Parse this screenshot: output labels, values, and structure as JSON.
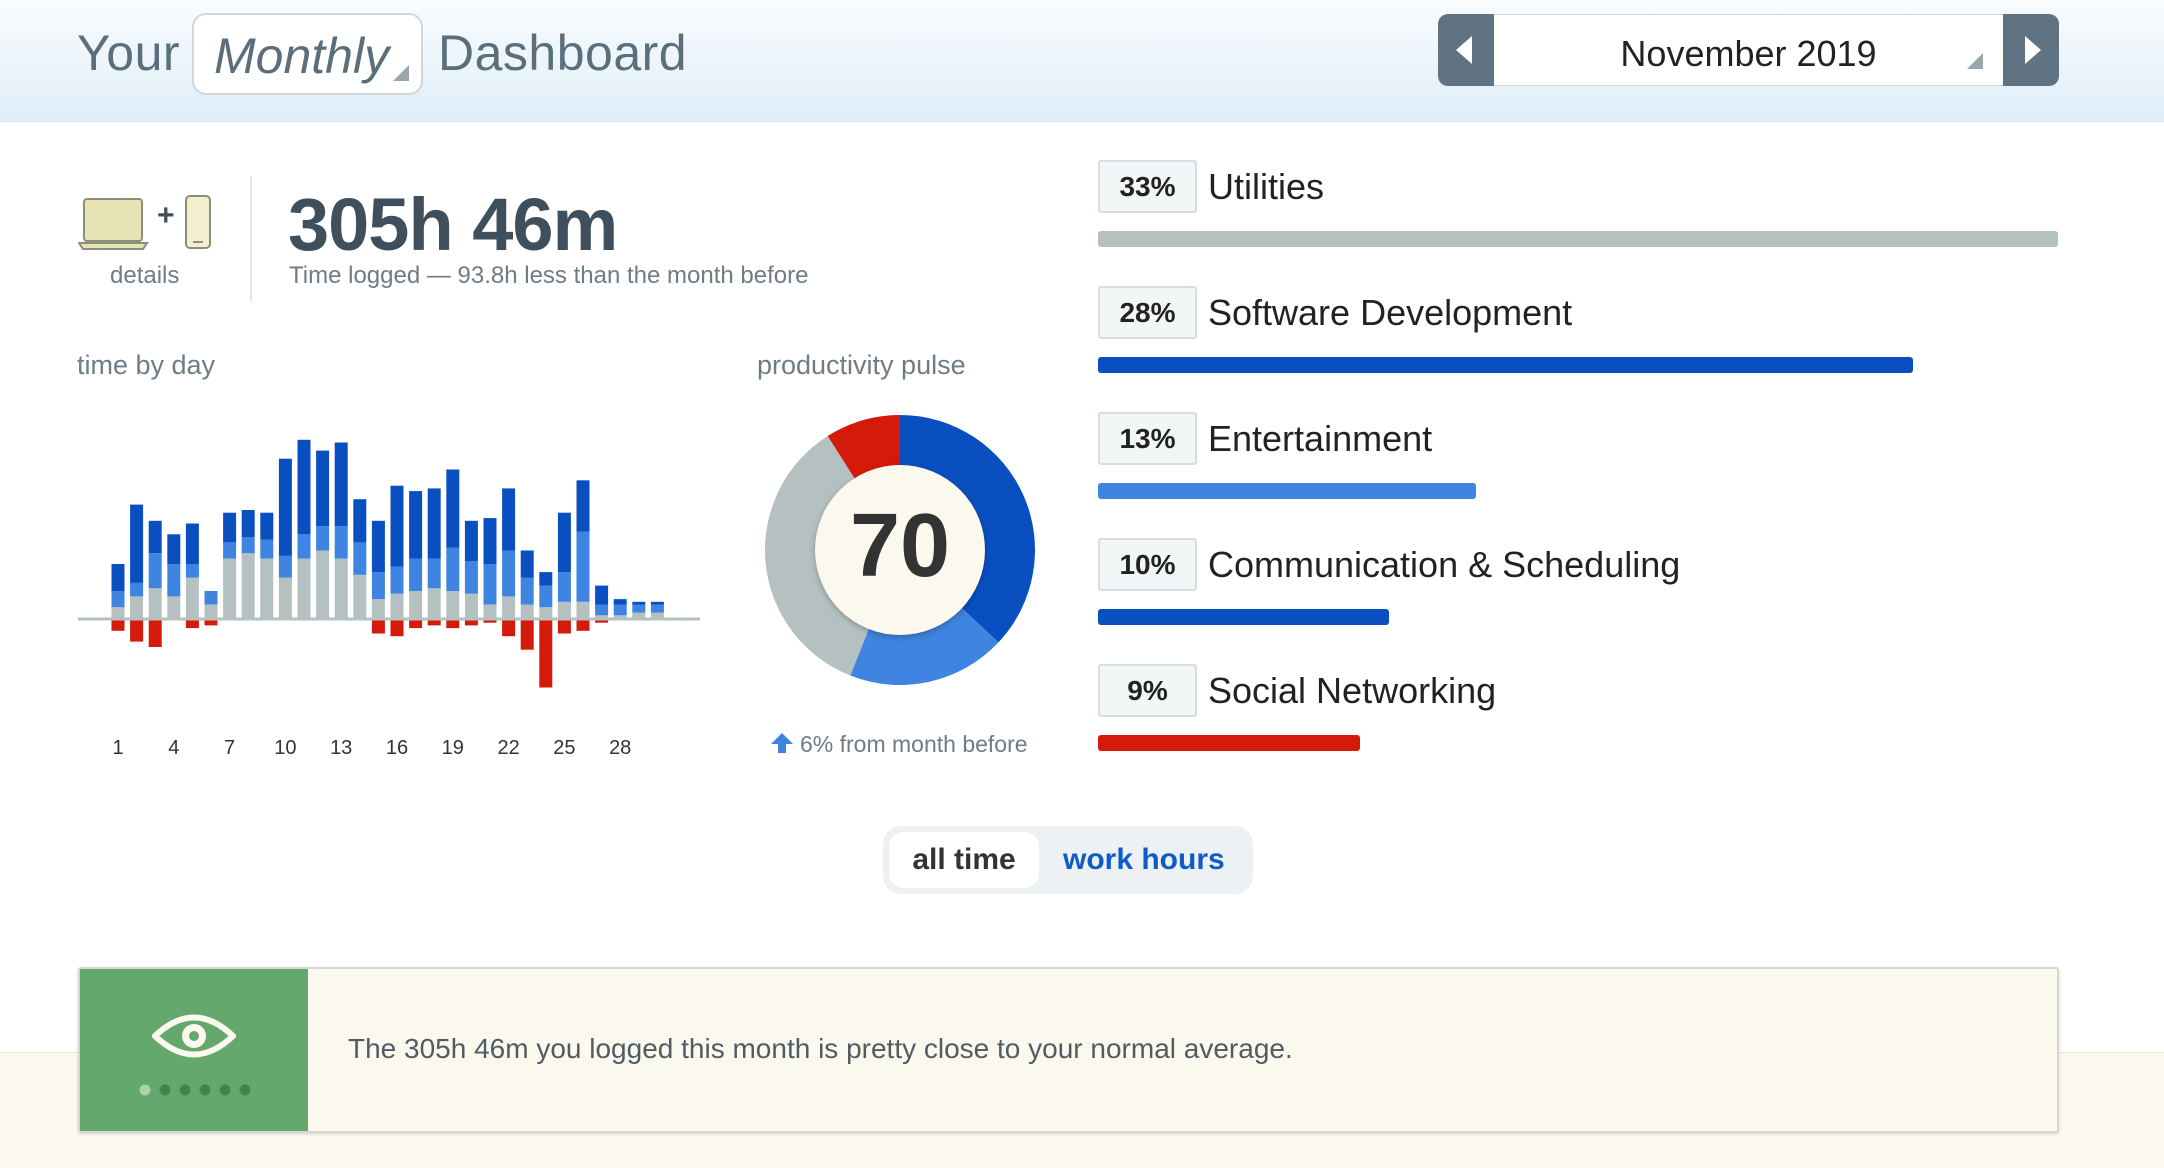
{
  "header": {
    "title_prefix": "Your",
    "period": "Monthly",
    "title_suffix": "Dashboard",
    "month": "November 2019"
  },
  "summary": {
    "details_label": "details",
    "time_logged": "305h 46m",
    "time_sub": "Time logged — 93.8h less than the month before"
  },
  "time_by_day": {
    "label": "time by day",
    "tick_labels": [
      "1",
      "4",
      "7",
      "10",
      "13",
      "16",
      "19",
      "22",
      "25",
      "28"
    ]
  },
  "productivity_pulse": {
    "label": "productivity pulse",
    "score": "70",
    "change": "6% from month before"
  },
  "categories": [
    {
      "pct": "33%",
      "name": "Utilities",
      "share": 33,
      "color": "#b4c1c0"
    },
    {
      "pct": "28%",
      "name": "Software Development",
      "share": 28,
      "color": "#0a4fc0"
    },
    {
      "pct": "13%",
      "name": "Entertainment",
      "share": 13,
      "color": "#3f84e0"
    },
    {
      "pct": "10%",
      "name": "Communication & Scheduling",
      "share": 10,
      "color": "#0a4fc0"
    },
    {
      "pct": "9%",
      "name": "Social Networking",
      "share": 9,
      "color": "#d41a0a"
    }
  ],
  "toggle": {
    "all_time": "all time",
    "work_hours": "work hours"
  },
  "insight": {
    "message": "The 305h 46m you logged this month is pretty close to your normal average."
  },
  "chart_data": [
    {
      "type": "bar",
      "title": "time by day",
      "categories": [
        1,
        2,
        3,
        4,
        5,
        6,
        7,
        8,
        9,
        10,
        11,
        12,
        13,
        14,
        15,
        16,
        17,
        18,
        19,
        20,
        21,
        22,
        23,
        24,
        25,
        26,
        27,
        28,
        29,
        30
      ],
      "tick_labels": [
        "1",
        "4",
        "7",
        "10",
        "13",
        "16",
        "19",
        "22",
        "25",
        "28"
      ],
      "series": [
        {
          "color": "#b4c1c0",
          "values": [
            4,
            8,
            11,
            8,
            15,
            5,
            22,
            24,
            22,
            15,
            22,
            25,
            22,
            16,
            7,
            9,
            10,
            11,
            10,
            9,
            5,
            8,
            5,
            4,
            6,
            6,
            1,
            1,
            2,
            2
          ]
        },
        {
          "color": "#3f84e0",
          "values": [
            6,
            5,
            13,
            12,
            5,
            5,
            6,
            6,
            7,
            8,
            9,
            9,
            12,
            12,
            10,
            10,
            12,
            11,
            16,
            12,
            15,
            17,
            10,
            8,
            11,
            26,
            4,
            4,
            3,
            3
          ]
        },
        {
          "color": "#0a4fc0",
          "values": [
            10,
            29,
            12,
            11,
            15,
            0,
            11,
            10,
            10,
            36,
            35,
            28,
            31,
            16,
            19,
            30,
            25,
            26,
            29,
            15,
            17,
            23,
            10,
            5,
            22,
            19,
            7,
            2,
            1,
            1
          ]
        },
        {
          "color": "#d41a0a",
          "values": [
            -4,
            -8,
            -10,
            0,
            -3,
            -2,
            0,
            0,
            0,
            0,
            0,
            0,
            0,
            0,
            -5,
            -6,
            -3,
            -2,
            -3,
            -2,
            -1,
            -6,
            -11,
            -25,
            -5,
            -4,
            -1,
            0,
            0,
            0
          ]
        }
      ]
    },
    {
      "type": "pie",
      "title": "productivity pulse",
      "center_value": 70,
      "slices": [
        {
          "color": "#0a4fc0",
          "value": 37
        },
        {
          "color": "#3f84e0",
          "value": 19
        },
        {
          "color": "#b4c1c0",
          "value": 35
        },
        {
          "color": "#d41a0a",
          "value": 9
        }
      ]
    }
  ]
}
